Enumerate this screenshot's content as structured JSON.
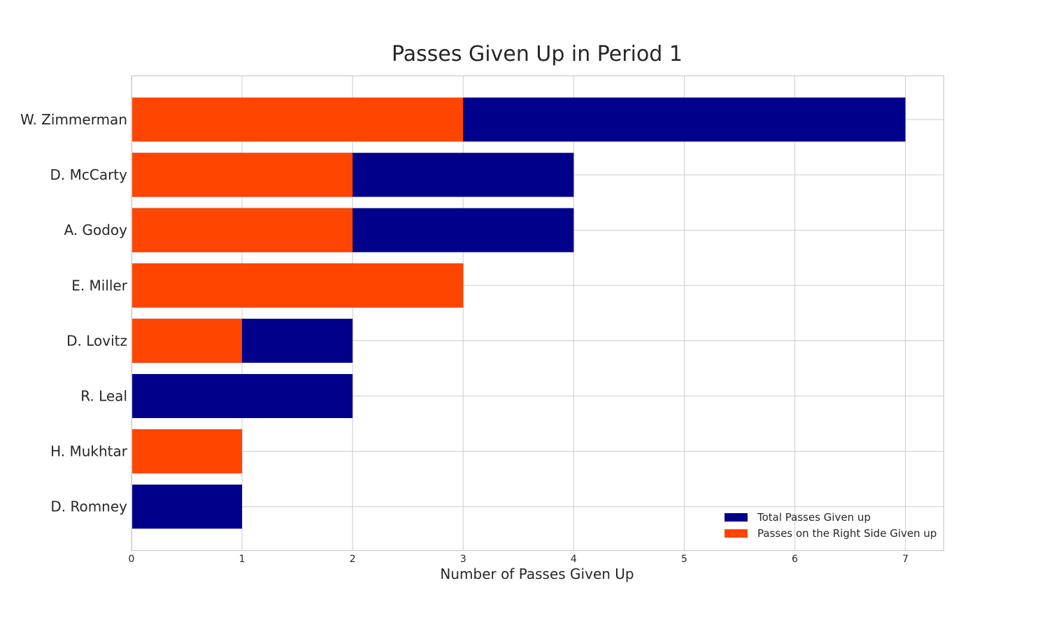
{
  "chart_data": {
    "type": "bar",
    "orientation": "horizontal",
    "title": "Passes Given Up in Period 1",
    "xlabel": "Number of Passes Given Up",
    "ylabel": "",
    "categories": [
      "W. Zimmerman",
      "D. McCarty",
      "A. Godoy",
      "E. Miller",
      "D. Lovitz",
      "R. Leal",
      "H. Mukhtar",
      "D. Romney"
    ],
    "series": [
      {
        "name": "Total Passes Given up",
        "color": "#00008b",
        "values": [
          7,
          4,
          4,
          3,
          2,
          2,
          1,
          1
        ]
      },
      {
        "name": "Passes on the Right Side Given up",
        "color": "#ff4500",
        "values": [
          3,
          2,
          2,
          3,
          1,
          0,
          1,
          0
        ]
      }
    ],
    "xlim": [
      0,
      7.35
    ],
    "xticks": [
      "0",
      "1",
      "2",
      "3",
      "4",
      "5",
      "6",
      "7"
    ],
    "grid": true,
    "legend_position": "bottom-right"
  }
}
